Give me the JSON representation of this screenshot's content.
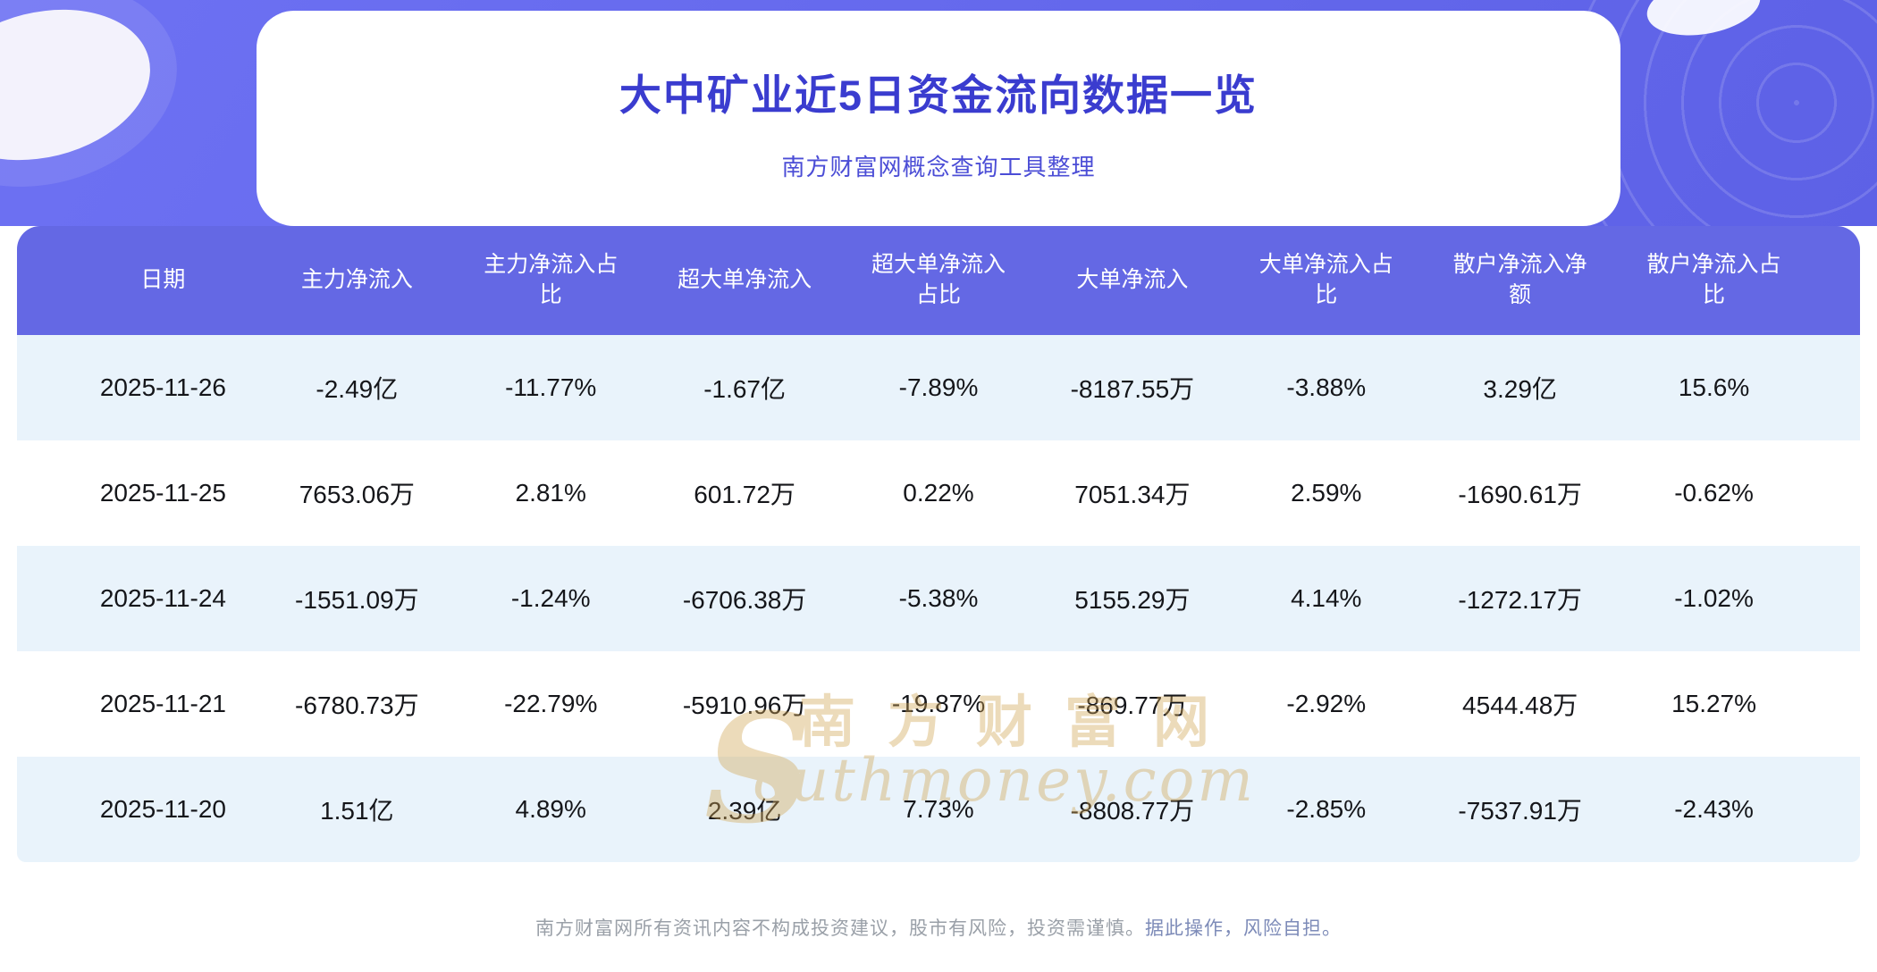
{
  "page": {
    "title": "大中矿业近5日资金流向数据一览",
    "subtitle": "南方财富网概念查询工具整理"
  },
  "chart_data": {
    "type": "table",
    "title": "大中矿业近5日资金流向数据一览",
    "columns": [
      "日期",
      "主力净流入",
      "主力净流入占比",
      "超大单净流入",
      "超大单净流入占比",
      "大单净流入",
      "大单净流入占比",
      "散户净流入净额",
      "散户净流入占比"
    ],
    "rows": [
      [
        "2025-11-26",
        "-2.49亿",
        "-11.77%",
        "-1.67亿",
        "-7.89%",
        "-8187.55万",
        "-3.88%",
        "3.29亿",
        "15.6%"
      ],
      [
        "2025-11-25",
        "7653.06万",
        "2.81%",
        "601.72万",
        "0.22%",
        "7051.34万",
        "2.59%",
        "-1690.61万",
        "-0.62%"
      ],
      [
        "2025-11-24",
        "-1551.09万",
        "-1.24%",
        "-6706.38万",
        "-5.38%",
        "5155.29万",
        "4.14%",
        "-1272.17万",
        "-1.02%"
      ],
      [
        "2025-11-21",
        "-6780.73万",
        "-22.79%",
        "-5910.96万",
        "-19.87%",
        "-869.77万",
        "-2.92%",
        "4544.48万",
        "15.27%"
      ],
      [
        "2025-11-20",
        "1.51亿",
        "4.89%",
        "2.39亿",
        "7.73%",
        "-8808.77万",
        "-2.85%",
        "-7537.91万",
        "-2.43%"
      ]
    ]
  },
  "watermark": {
    "initial": "S",
    "cn": "南方财富网",
    "en": "outhmoney.com"
  },
  "footer": {
    "text": "南方财富网所有资讯内容不构成投资建议，股市有风险，投资需谨慎。",
    "tail": "据此操作，风险自担。"
  },
  "colors": {
    "banner": "#6266e9",
    "table_header": "#6468e4",
    "row_alt": "#e9f3fb",
    "title": "#3a3ccf",
    "watermark": "#d2a655"
  }
}
